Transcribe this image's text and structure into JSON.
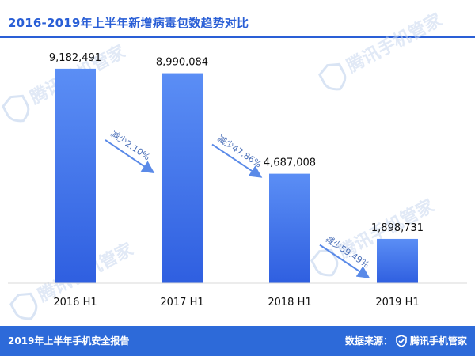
{
  "title": "2016-2019年上半年新增病毒包数趋势对比",
  "footer": {
    "report": "2019年上半年手机安全报告",
    "source_label": "数据来源：",
    "brand": "腾讯手机管家"
  },
  "watermark": "腾讯手机管家",
  "colors": {
    "accent": "#2a5fd6",
    "bar_top": "#5b8ef5",
    "bar_bottom": "#2f5fe0",
    "arrow": "#5a8ae8"
  },
  "chart_data": {
    "type": "bar",
    "title": "2016-2019年上半年新增病毒包数趋势对比",
    "categories": [
      "2016 H1",
      "2017 H1",
      "2018 H1",
      "2019 H1"
    ],
    "values": [
      9182491,
      8990084,
      4687008,
      1898731
    ],
    "value_labels": [
      "9,182,491",
      "8,990,084",
      "4,687,008",
      "1,898,731"
    ],
    "ylim": [
      0,
      10500000
    ],
    "annotations": [
      "减少2.10%",
      "减少47.86%",
      "减少59.49%"
    ],
    "xlabel": "",
    "ylabel": ""
  }
}
